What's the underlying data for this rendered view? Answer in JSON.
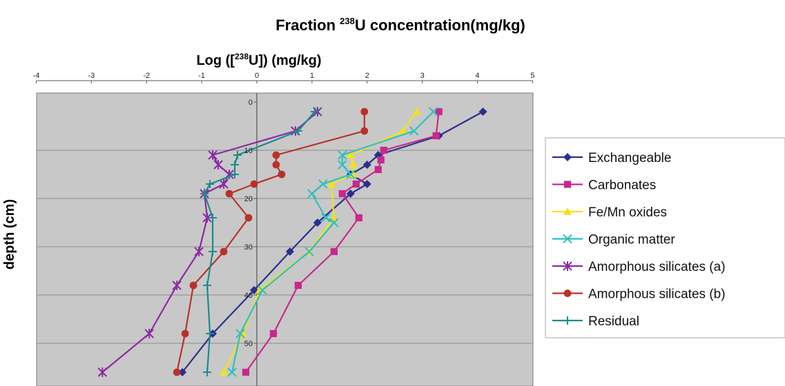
{
  "chart_data": {
    "type": "line",
    "title_prefix": "Fraction ",
    "title_sup": "238",
    "title_suffix": "U concentration(mg/kg)",
    "xlabel_prefix": "Log ([",
    "xlabel_sup": "238",
    "xlabel_suffix": "U]) (mg/kg)",
    "ylabel": "depth (cm)",
    "xlim": [
      -4,
      5
    ],
    "ylim": [
      0,
      58
    ],
    "x_ticks": [
      -4,
      -3,
      -2,
      -1,
      0,
      1,
      2,
      3,
      4,
      5
    ],
    "y_ticks": [
      0,
      10,
      20,
      30,
      40,
      50
    ],
    "y_inverted": true,
    "grid": "horizontal",
    "legend_position": "right",
    "series": [
      {
        "name": "Exchangeable",
        "color": "#2a2f8c",
        "marker": "diamond",
        "x": [
          4.1,
          3.3,
          2.2,
          2.0,
          1.7,
          2.0,
          1.7,
          1.1,
          0.6,
          -0.05,
          -0.8,
          -1.35
        ],
        "y": [
          2,
          7,
          11,
          13,
          15,
          17,
          19,
          25,
          31,
          39,
          48,
          56
        ]
      },
      {
        "name": "Carbonates",
        "color": "#c8288c",
        "marker": "square",
        "x": [
          3.3,
          3.25,
          2.3,
          2.25,
          2.2,
          1.8,
          1.55,
          1.85,
          1.4,
          0.75,
          0.3,
          -0.2
        ],
        "y": [
          2,
          7,
          10,
          12,
          14,
          17,
          19,
          24,
          31,
          38,
          48,
          56
        ]
      },
      {
        "name": "Fe/Mn oxides",
        "color": "#f2e21a",
        "marker": "triangle",
        "x": [
          2.9,
          2.65,
          1.7,
          1.75,
          1.75,
          1.35,
          1.4,
          0.95,
          0.05,
          -0.25,
          -0.6
        ],
        "y": [
          2,
          6,
          11,
          13,
          15,
          17,
          24,
          31,
          39,
          48,
          56
        ]
      },
      {
        "name": "Organic matter",
        "color": "#2fbfbf",
        "marker": "x",
        "x": [
          3.2,
          2.85,
          1.55,
          1.55,
          1.7,
          1.2,
          1.0,
          1.25,
          1.4,
          0.95,
          0.1,
          -0.3,
          -0.45
        ],
        "y": [
          2,
          6,
          11,
          13,
          15,
          17,
          19,
          24,
          25,
          31,
          39,
          48,
          56
        ]
      },
      {
        "name": "Amorphous silicates (a)",
        "color": "#8c2aa0",
        "marker": "star",
        "x": [
          1.1,
          0.7,
          -0.8,
          -0.7,
          -0.5,
          -0.6,
          -0.95,
          -0.9,
          -1.05,
          -1.45,
          -1.95,
          -2.8
        ],
        "y": [
          2,
          6,
          11,
          13,
          15,
          17,
          19,
          24,
          31,
          38,
          48,
          56
        ]
      },
      {
        "name": "Amorphous silicates (b)",
        "color": "#b83228",
        "marker": "circle",
        "x": [
          1.95,
          1.95,
          0.35,
          0.35,
          0.45,
          -0.05,
          -0.5,
          -0.15,
          -0.6,
          -1.15,
          -1.3,
          -1.45
        ],
        "y": [
          2,
          6,
          11,
          13,
          15,
          17,
          19,
          24,
          31,
          38,
          48,
          56
        ]
      },
      {
        "name": "Residual",
        "color": "#1a8c8c",
        "marker": "plus",
        "x": [
          1.05,
          0.75,
          -0.35,
          -0.4,
          -0.4,
          -0.85,
          -0.95,
          -0.8,
          -0.8,
          -0.9,
          -0.85,
          -0.9
        ],
        "y": [
          2,
          6,
          11,
          13,
          15,
          17,
          19,
          24,
          31,
          38,
          48,
          56
        ]
      }
    ]
  }
}
